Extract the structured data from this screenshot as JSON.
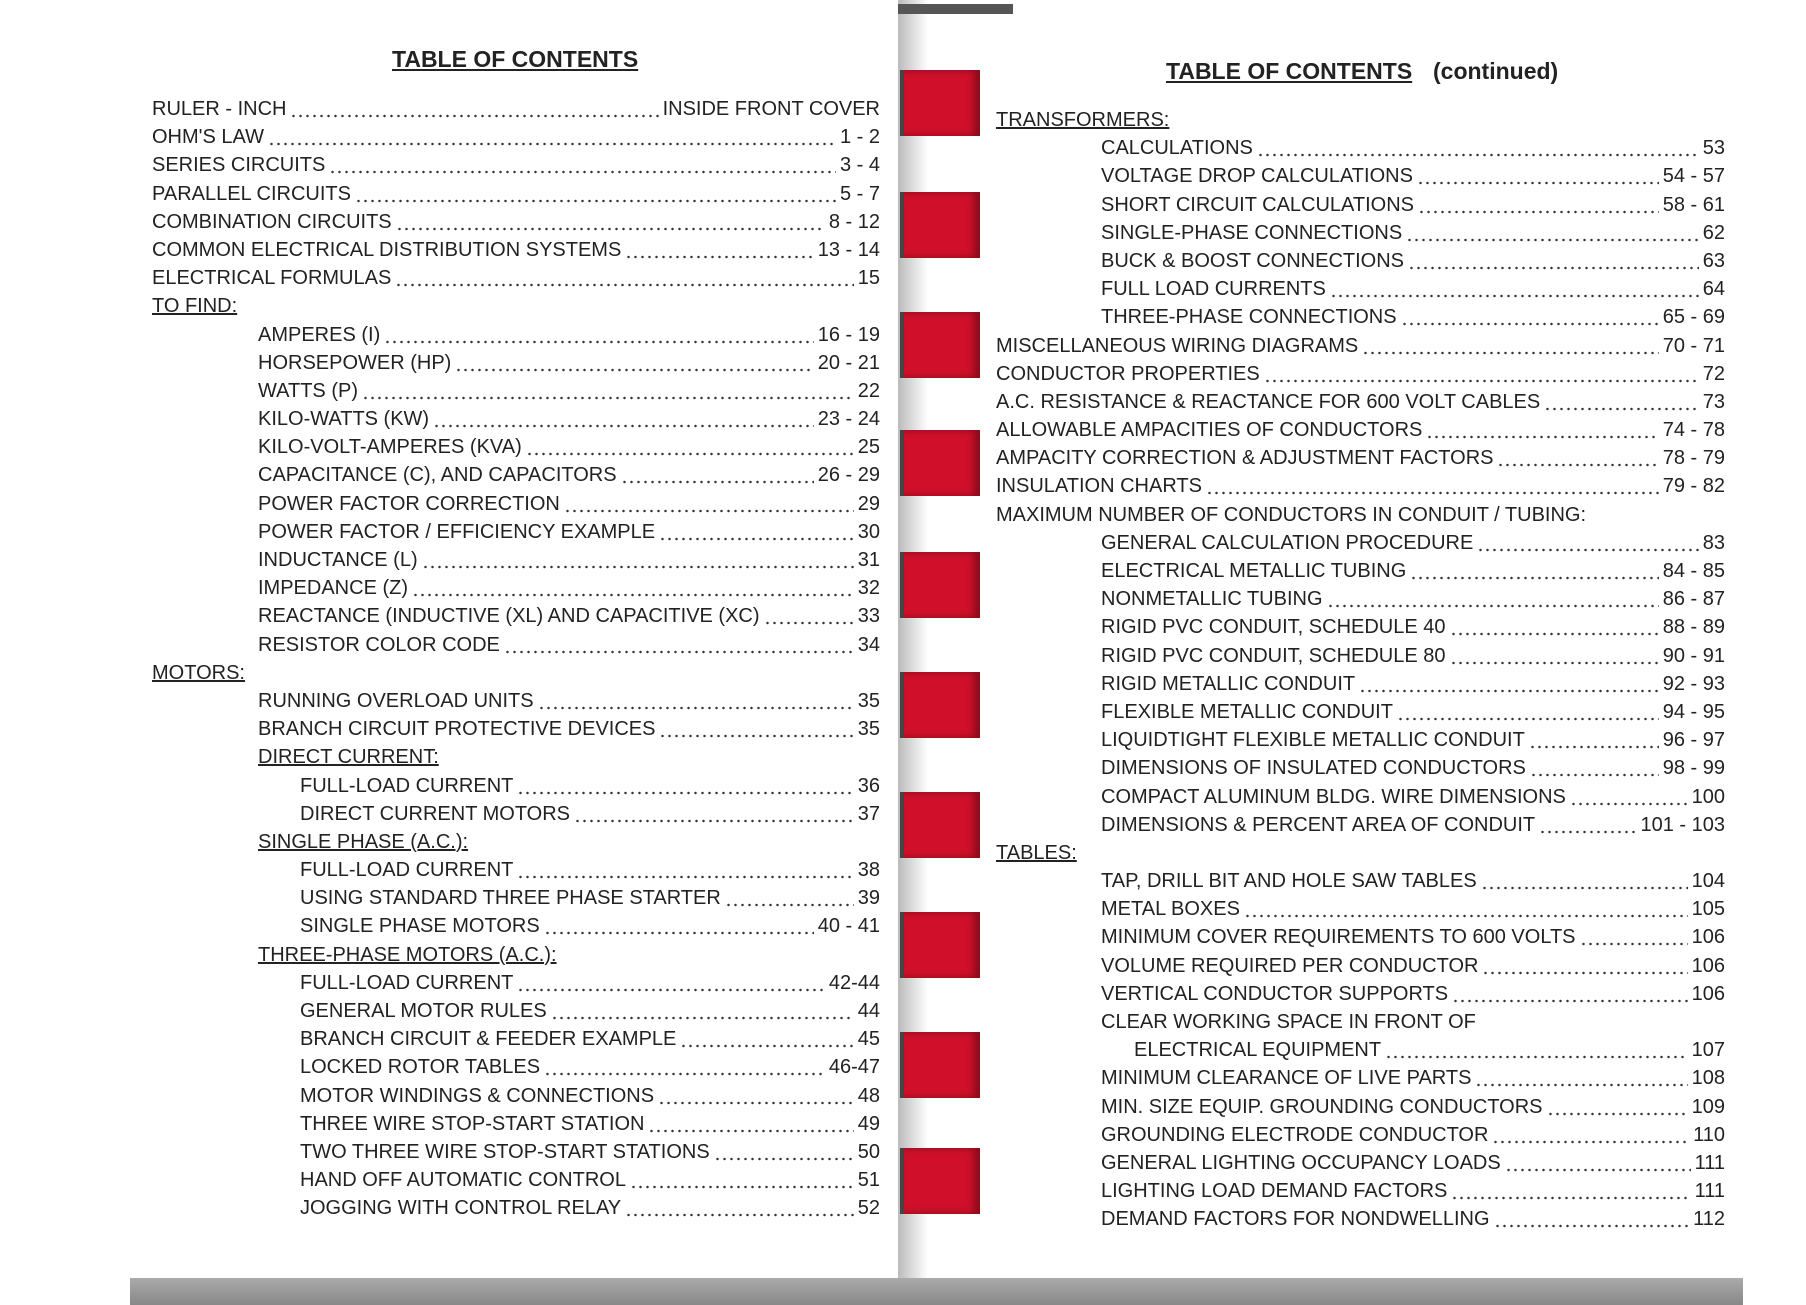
{
  "left": {
    "title": "TABLE OF CONTENTS",
    "entries": [
      {
        "label": "RULER - INCH",
        "page": "INSIDE FRONT COVER"
      },
      {
        "label": "OHM'S LAW",
        "page": "1 - 2"
      },
      {
        "label": "SERIES CIRCUITS",
        "page": "3 - 4"
      },
      {
        "label": "PARALLEL CIRCUITS",
        "page": "5 - 7"
      },
      {
        "label": "COMBINATION CIRCUITS",
        "page": "8 - 12"
      },
      {
        "label": "COMMON ELECTRICAL DISTRIBUTION SYSTEMS",
        "page": "13 - 14"
      },
      {
        "label": "ELECTRICAL FORMULAS",
        "page": "15"
      },
      {
        "label": "TO FIND:",
        "underlined": true,
        "items": [
          {
            "label": "AMPERES (I)",
            "page": "16 - 19"
          },
          {
            "label": "HORSEPOWER (HP)",
            "page": "20 - 21"
          },
          {
            "label": "WATTS (P)",
            "page": "22"
          },
          {
            "label": "KILO-WATTS (KW)",
            "page": "23 - 24"
          },
          {
            "label": "KILO-VOLT-AMPERES (KVA)",
            "page": "25"
          },
          {
            "label": "CAPACITANCE (C), AND CAPACITORS",
            "page": "26 - 29"
          },
          {
            "label": "POWER FACTOR CORRECTION",
            "page": "29"
          },
          {
            "label": "POWER FACTOR / EFFICIENCY EXAMPLE",
            "page": "30"
          },
          {
            "label": "INDUCTANCE (L)",
            "page": "31"
          },
          {
            "label": "IMPEDANCE (Z)",
            "page": "32"
          },
          {
            "label": "REACTANCE (INDUCTIVE (XL) AND CAPACITIVE (XC)",
            "page": "33"
          },
          {
            "label": "RESISTOR COLOR CODE",
            "page": "34"
          }
        ]
      },
      {
        "label": "MOTORS:",
        "underlined": true,
        "items": [
          {
            "label": "RUNNING OVERLOAD UNITS",
            "page": "35"
          },
          {
            "label": "BRANCH CIRCUIT PROTECTIVE DEVICES",
            "page": "35"
          },
          {
            "label": "DIRECT CURRENT:",
            "underlined": true,
            "items": [
              {
                "label": "FULL-LOAD CURRENT",
                "page": "36"
              },
              {
                "label": "DIRECT CURRENT MOTORS",
                "page": "37"
              }
            ]
          },
          {
            "label": "SINGLE PHASE (A.C.):",
            "underlined": true,
            "items": [
              {
                "label": "FULL-LOAD CURRENT",
                "page": "38"
              },
              {
                "label": "USING STANDARD THREE PHASE STARTER",
                "page": "39"
              },
              {
                "label": "SINGLE PHASE MOTORS",
                "page": "40 - 41"
              }
            ]
          },
          {
            "label": "THREE-PHASE MOTORS (A.C.):",
            "underlined": true,
            "items": [
              {
                "label": "FULL-LOAD CURRENT",
                "page": "42-44"
              },
              {
                "label": "GENERAL MOTOR RULES",
                "page": "44"
              },
              {
                "label": "BRANCH CIRCUIT & FEEDER EXAMPLE",
                "page": "45"
              },
              {
                "label": "LOCKED ROTOR TABLES",
                "page": "46-47"
              },
              {
                "label": "MOTOR WINDINGS & CONNECTIONS",
                "page": "48"
              },
              {
                "label": "THREE WIRE STOP-START STATION",
                "page": "49"
              },
              {
                "label": "TWO THREE WIRE STOP-START STATIONS",
                "page": "50"
              },
              {
                "label": "HAND OFF AUTOMATIC CONTROL",
                "page": "51"
              },
              {
                "label": "JOGGING WITH CONTROL RELAY",
                "page": "52"
              }
            ]
          }
        ]
      }
    ]
  },
  "right": {
    "title": "TABLE OF CONTENTS",
    "title_note": "(continued)",
    "entries": [
      {
        "label": "TRANSFORMERS:",
        "underlined": true,
        "items": [
          {
            "label": "CALCULATIONS",
            "page": "53"
          },
          {
            "label": "VOLTAGE DROP CALCULATIONS",
            "page": "54 - 57"
          },
          {
            "label": "SHORT CIRCUIT CALCULATIONS",
            "page": "58 - 61"
          },
          {
            "label": "SINGLE-PHASE CONNECTIONS",
            "page": "62"
          },
          {
            "label": "BUCK & BOOST CONNECTIONS",
            "page": "63"
          },
          {
            "label": "FULL LOAD CURRENTS",
            "page": "64"
          },
          {
            "label": "THREE-PHASE CONNECTIONS",
            "page": "65 - 69"
          }
        ]
      },
      {
        "label": "MISCELLANEOUS WIRING DIAGRAMS",
        "page": "70 - 71"
      },
      {
        "label": "CONDUCTOR PROPERTIES",
        "page": "72"
      },
      {
        "label": "A.C. RESISTANCE & REACTANCE FOR 600 VOLT CABLES",
        "page": "73"
      },
      {
        "label": "ALLOWABLE AMPACITIES OF CONDUCTORS",
        "page": "74 - 78"
      },
      {
        "label": "AMPACITY CORRECTION & ADJUSTMENT FACTORS",
        "page": "78 - 79"
      },
      {
        "label": "INSULATION CHARTS",
        "page": "79 - 82"
      },
      {
        "label": "MAXIMUM NUMBER OF CONDUCTORS IN CONDUIT / TUBING:",
        "underlined": false,
        "items": [
          {
            "label": "GENERAL CALCULATION PROCEDURE",
            "page": "83"
          },
          {
            "label": "ELECTRICAL METALLIC TUBING",
            "page": "84 - 85"
          },
          {
            "label": "NONMETALLIC TUBING",
            "page": "86 - 87"
          },
          {
            "label": "RIGID PVC CONDUIT, SCHEDULE 40",
            "page": "88 - 89"
          },
          {
            "label": "RIGID PVC CONDUIT, SCHEDULE 80",
            "page": "90 - 91"
          },
          {
            "label": "RIGID METALLIC CONDUIT",
            "page": "92 - 93"
          },
          {
            "label": "FLEXIBLE METALLIC CONDUIT",
            "page": "94 - 95"
          },
          {
            "label": "LIQUIDTIGHT FLEXIBLE METALLIC CONDUIT",
            "page": "96 - 97"
          },
          {
            "label": "DIMENSIONS OF INSULATED CONDUCTORS",
            "page": "98 - 99"
          },
          {
            "label": "COMPACT ALUMINUM BLDG. WIRE DIMENSIONS",
            "page": "100"
          },
          {
            "label": "DIMENSIONS & PERCENT AREA OF CONDUIT",
            "page": "101 - 103"
          }
        ]
      },
      {
        "label": "TABLES:",
        "underlined": true,
        "items": [
          {
            "label": "TAP, DRILL BIT AND HOLE SAW TABLES",
            "page": "104"
          },
          {
            "label": "METAL BOXES",
            "page": "105"
          },
          {
            "label": "MINIMUM COVER REQUIREMENTS TO 600 VOLTS",
            "page": "106"
          },
          {
            "label": "VOLUME REQUIRED PER CONDUCTOR",
            "page": "106"
          },
          {
            "label": "VERTICAL CONDUCTOR SUPPORTS",
            "page": "106"
          },
          {
            "label": "CLEAR WORKING SPACE IN FRONT OF",
            "label_cont": "ELECTRICAL EQUIPMENT",
            "page": "107"
          },
          {
            "label": "MINIMUM CLEARANCE OF LIVE PARTS",
            "page": "108"
          },
          {
            "label": "MIN. SIZE EQUIP. GROUNDING CONDUCTORS",
            "page": "109"
          },
          {
            "label": "GROUNDING ELECTRODE CONDUCTOR",
            "page": "110"
          },
          {
            "label": "GENERAL LIGHTING OCCUPANCY LOADS",
            "page": "111"
          },
          {
            "label": "LIGHTING LOAD DEMAND FACTORS",
            "page": "111"
          },
          {
            "label": "DEMAND FACTORS FOR NONDWELLING",
            "page": "112"
          }
        ]
      }
    ]
  }
}
